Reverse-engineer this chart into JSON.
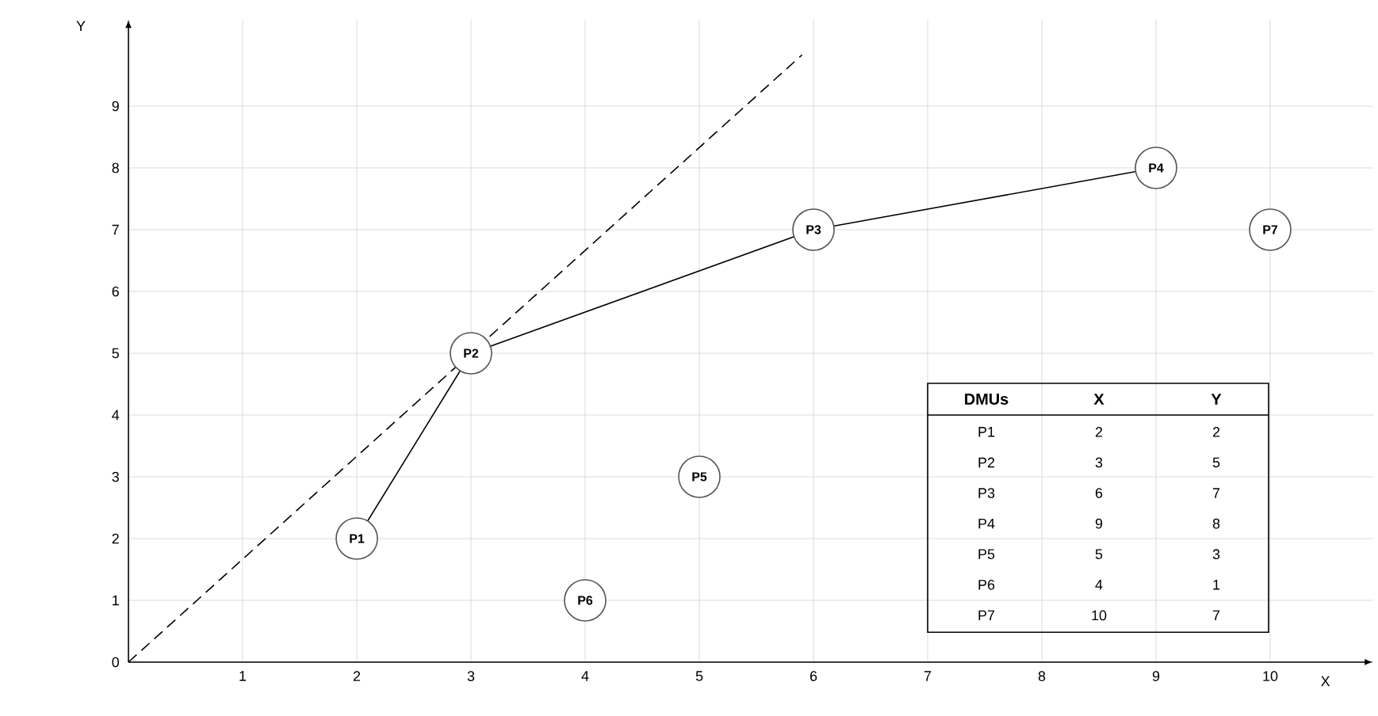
{
  "chart_data": {
    "type": "scatter",
    "xlabel": "X",
    "ylabel": "Y",
    "xlim": [
      0,
      10.9
    ],
    "ylim": [
      0,
      10.4
    ],
    "xticks": [
      1,
      2,
      3,
      4,
      5,
      6,
      7,
      8,
      9,
      10
    ],
    "yticks": [
      0,
      1,
      2,
      3,
      4,
      5,
      6,
      7,
      8,
      9
    ],
    "grid": true,
    "series": [
      {
        "type": "line",
        "color": "#000000",
        "line_style": "dashed",
        "marker": "none",
        "x": [
          0,
          5.9
        ],
        "values": [
          0,
          9.83
        ]
      },
      {
        "type": "line",
        "color": "#000000",
        "line_style": "solid",
        "marker": "none",
        "x": [
          2,
          3,
          6,
          9
        ],
        "values": [
          2,
          5,
          7,
          8
        ]
      },
      {
        "color": "#555555",
        "marker": "circle",
        "x": [
          2,
          3,
          6,
          9,
          5,
          4,
          10
        ],
        "values": [
          2,
          5,
          7,
          8,
          3,
          1,
          7
        ]
      }
    ],
    "annotations": [
      {
        "text": "P1",
        "x": 2,
        "y": 2
      },
      {
        "text": "P2",
        "x": 3,
        "y": 5
      },
      {
        "text": "P3",
        "x": 6,
        "y": 7
      },
      {
        "text": "P4",
        "x": 9,
        "y": 8
      },
      {
        "text": "P5",
        "x": 5,
        "y": 3
      },
      {
        "text": "P6",
        "x": 4,
        "y": 1
      },
      {
        "text": "P7",
        "x": 10,
        "y": 7
      },
      "DMUs",
      "X",
      "Y",
      "P1",
      "2",
      "2",
      "P2",
      "3",
      "5",
      "P3",
      "6",
      "7",
      "P4",
      "9",
      "8",
      "P5",
      "5",
      "3",
      "P6",
      "4",
      "1",
      "P7",
      "10",
      "7"
    ]
  }
}
